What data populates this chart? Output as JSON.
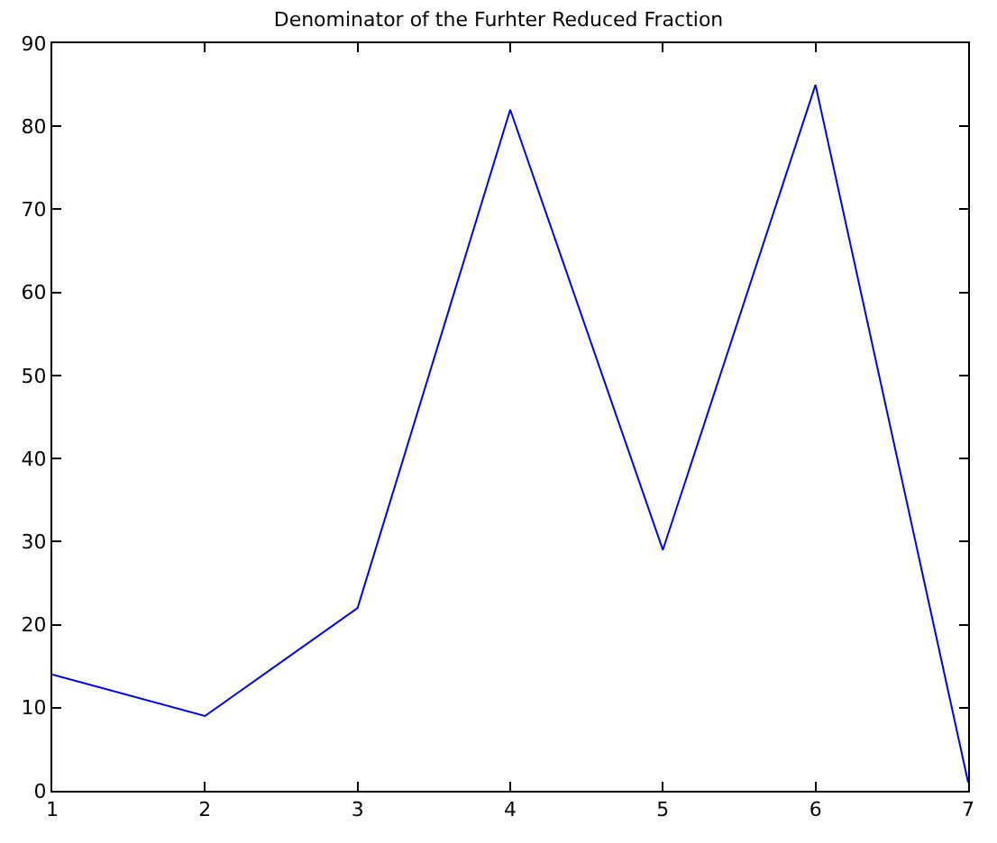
{
  "chart_data": {
    "type": "line",
    "title": "Denominator of the Furhter Reduced Fraction",
    "x": [
      1,
      2,
      3,
      4,
      5,
      6,
      7
    ],
    "series": [
      {
        "color": "#0000ff",
        "values": [
          14,
          9,
          22,
          82,
          29,
          85,
          1
        ]
      }
    ],
    "xlim": [
      1,
      7
    ],
    "xticks": [
      1,
      2,
      3,
      4,
      5,
      6,
      7
    ],
    "ylim": [
      0,
      90
    ],
    "yticks": [
      0,
      10,
      20,
      30,
      40,
      50,
      60,
      70,
      80,
      90
    ],
    "legend": false,
    "marker": "none",
    "line_style": "solid"
  }
}
